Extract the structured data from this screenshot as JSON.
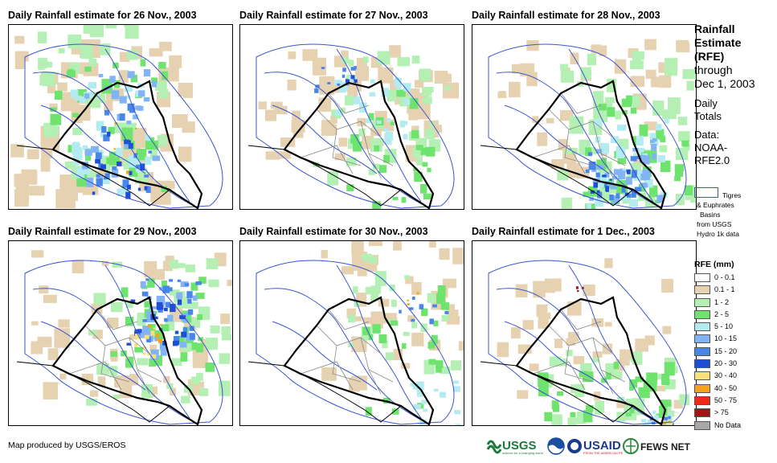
{
  "panels": [
    {
      "title": "Daily Rainfall estimate for 26 Nov., 2003",
      "pattern": "wet-north-east"
    },
    {
      "title": "Daily Rainfall estimate for 27 Nov., 2003",
      "pattern": "light-north"
    },
    {
      "title": "Daily Rainfall estimate for 28 Nov., 2003",
      "pattern": "south-east"
    },
    {
      "title": "Daily Rainfall estimate for 29 Nov., 2003",
      "pattern": "central-heavy"
    },
    {
      "title": "Daily Rainfall estimate for 30 Nov., 2003",
      "pattern": "light-east"
    },
    {
      "title": "Daily Rainfall estimate for 1 Dec., 2003",
      "pattern": "south-heavy"
    }
  ],
  "legend": {
    "title_lines": [
      "Rainfall",
      "Estimate",
      "(RFE)"
    ],
    "through_lines": [
      "through",
      "Dec 1, 2003"
    ],
    "daily_lines": [
      "Daily",
      "Totals"
    ],
    "data_lines": [
      "Data:",
      "NOAA-",
      "RFE2.0"
    ],
    "basin_lines": [
      "Tigres",
      "& Euphrates",
      "Basins",
      "from USGS",
      "Hydro 1k data"
    ],
    "basin_color": "#3a55d0",
    "rfe_title": "RFE (mm)",
    "rfe_classes": [
      {
        "label": "0 - 0.1",
        "color": "#ffffff"
      },
      {
        "label": "0.1 - 1",
        "color": "#e6d2b0"
      },
      {
        "label": "1 - 2",
        "color": "#b4f0b4"
      },
      {
        "label": "2 - 5",
        "color": "#6ee46e"
      },
      {
        "label": "5 - 10",
        "color": "#b4ebf0"
      },
      {
        "label": "10 - 15",
        "color": "#82b4f5"
      },
      {
        "label": "15 - 20",
        "color": "#4a86ea"
      },
      {
        "label": "20 - 30",
        "color": "#1e4ed8"
      },
      {
        "label": "30 - 40",
        "color": "#f5e07a"
      },
      {
        "label": "40 - 50",
        "color": "#f5a21e"
      },
      {
        "label": "50 - 75",
        "color": "#f02814"
      },
      {
        "label": "> 75",
        "color": "#a01414"
      },
      {
        "label": "No Data",
        "color": "#a8a8a8"
      }
    ]
  },
  "credit": "Map produced by USGS/EROS",
  "logos": {
    "usgs": "USGS",
    "usgs_tag": "science for a changing world",
    "usaid": "USAID",
    "usaid_tag": "FROM THE AMERICAN PEOPLE",
    "fews": "FEWS NET"
  }
}
